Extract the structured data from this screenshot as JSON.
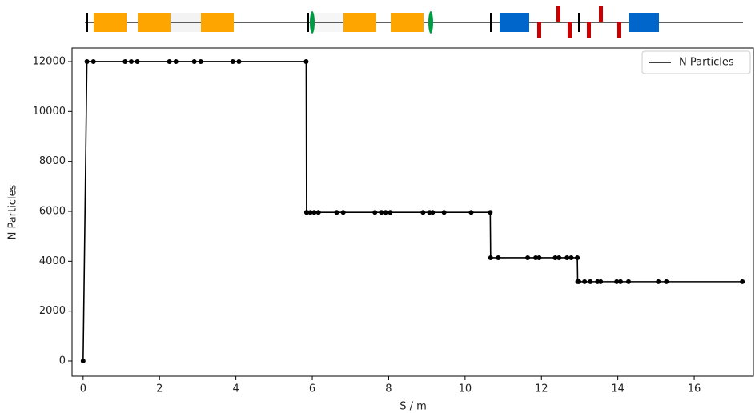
{
  "chart_data": {
    "type": "line",
    "xlabel": "S / m",
    "ylabel": "N Particles",
    "x": [
      0,
      0.1,
      0.27,
      1.1,
      1.26,
      1.42,
      2.26,
      2.43,
      2.91,
      3.08,
      3.92,
      4.08,
      5.84,
      5.85,
      5.86,
      5.95,
      6.05,
      6.16,
      6.64,
      6.81,
      7.64,
      7.81,
      7.92,
      8.04,
      8.9,
      9.07,
      9.15,
      9.45,
      10.16,
      10.66,
      10.67,
      10.87,
      11.64,
      11.85,
      11.94,
      12.36,
      12.46,
      12.67,
      12.78,
      12.94,
      12.95,
      12.98,
      13.13,
      13.28,
      13.47,
      13.55,
      13.97,
      14.07,
      14.28,
      15.06,
      15.27,
      17.26
    ],
    "series": [
      {
        "name": "N Particles",
        "color": "#000000",
        "values": [
          0,
          12000,
          12000,
          12000,
          12000,
          12000,
          12000,
          12000,
          12000,
          12000,
          12000,
          12000,
          12000,
          5960,
          5960,
          5960,
          5960,
          5960,
          5960,
          5960,
          5960,
          5960,
          5960,
          5960,
          5960,
          5960,
          5960,
          5960,
          5960,
          5960,
          4140,
          4140,
          4140,
          4140,
          4140,
          4140,
          4140,
          4140,
          4140,
          4140,
          3180,
          3180,
          3180,
          3180,
          3180,
          3180,
          3180,
          3180,
          3180,
          3180,
          3180,
          3180
        ]
      }
    ],
    "xlim": [
      -0.29,
      17.55
    ],
    "ylim": [
      -610,
      12545
    ],
    "xticks": [
      0,
      2,
      4,
      6,
      8,
      10,
      12,
      14,
      16
    ],
    "yticks": [
      0,
      2000,
      4000,
      6000,
      8000,
      10000,
      12000
    ],
    "legend": "upper right",
    "markers": true
  }
}
